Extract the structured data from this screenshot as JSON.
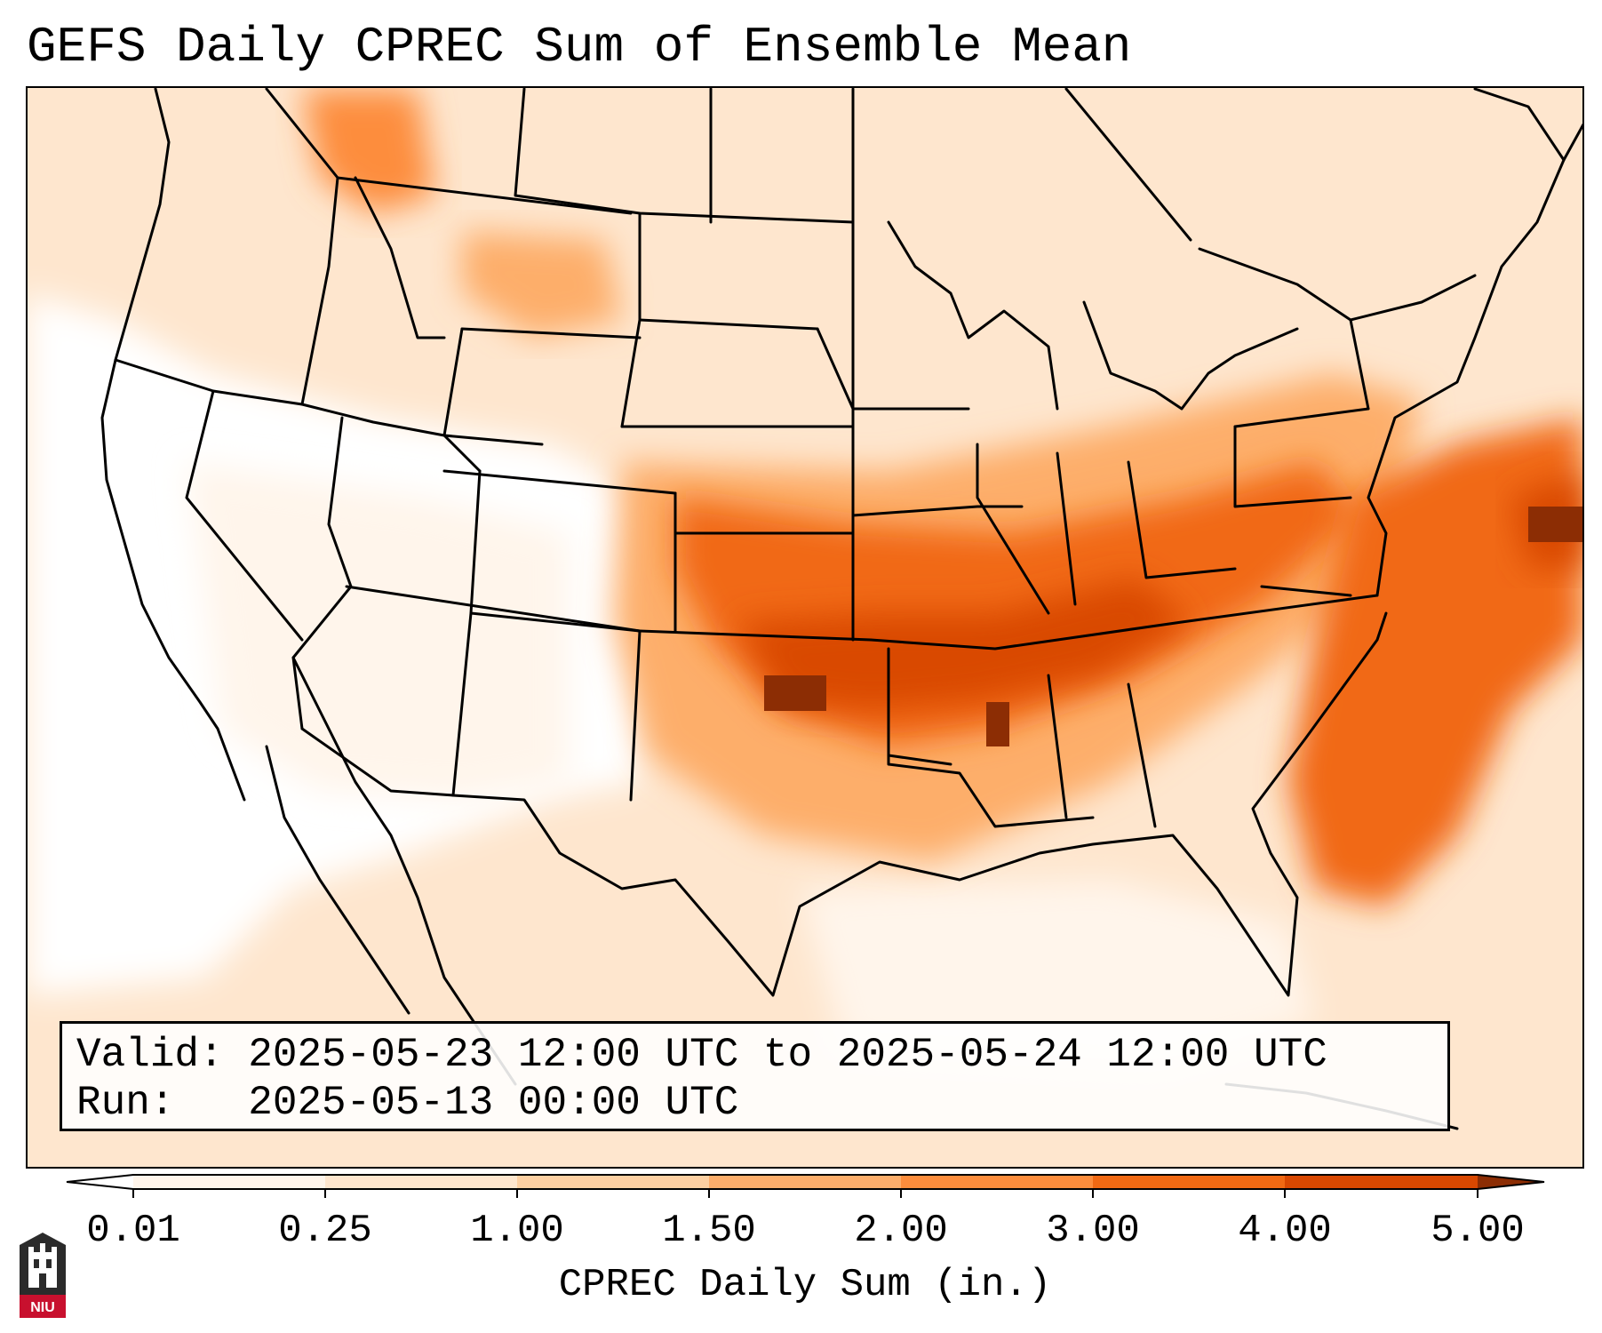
{
  "title": "GEFS Daily CPREC Sum of Ensemble Mean",
  "info": {
    "valid": "Valid: 2025-05-23 12:00 UTC to 2025-05-24 12:00 UTC",
    "run": "Run:   2025-05-13 00:00 UTC"
  },
  "colorbar": {
    "title": "CPREC Daily Sum (in.)",
    "ticks": [
      "0.01",
      "0.25",
      "1.00",
      "1.50",
      "2.00",
      "3.00",
      "4.00",
      "5.00"
    ],
    "colors": [
      "#fff5eb",
      "#fee6ce",
      "#fdd0a2",
      "#fdae6b",
      "#fd8d3c",
      "#f16913",
      "#d94801"
    ],
    "under_color": "#ffffff",
    "over_color": "#8c2d04"
  },
  "logo": {
    "text": "NIU",
    "color": "#c8102e"
  }
}
